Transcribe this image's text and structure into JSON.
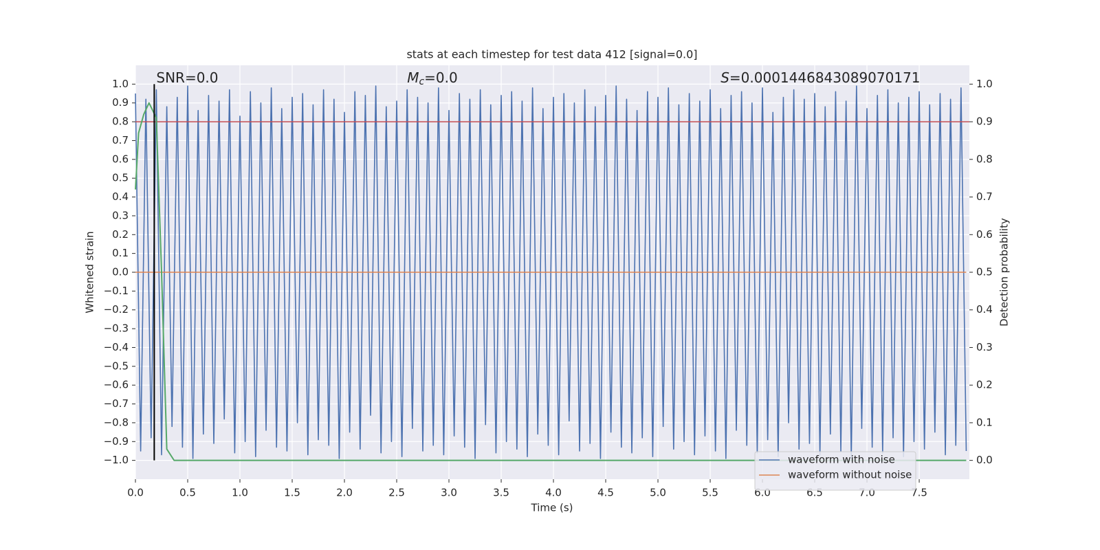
{
  "chart_data": {
    "type": "line",
    "title": "stats at each timestep for test data 412 [signal=0.0]",
    "xlabel": "Time (s)",
    "ylabel": "Whitened strain",
    "y2label": "Detection probability",
    "annotations": [
      {
        "x": 0.2,
        "text": "SNR=0.0"
      },
      {
        "x": 2.6,
        "symbol": "M",
        "sub": "c",
        "text": "=0.0"
      },
      {
        "x": 5.6,
        "symbol": "S",
        "text": "=0.0001446843089070171"
      }
    ],
    "series": [
      {
        "name": "waveform with noise",
        "color": "#4c72b0",
        "x": [
          0,
          0.05,
          0.1,
          0.15,
          0.2,
          0.25,
          0.3,
          0.35,
          0.4,
          0.45,
          0.5,
          0.55,
          0.6,
          0.65,
          0.7,
          0.75,
          0.8,
          0.85,
          0.9,
          0.95,
          1,
          1.05,
          1.1,
          1.15,
          1.2,
          1.25,
          1.3,
          1.35,
          1.4,
          1.45,
          1.5,
          1.55,
          1.6,
          1.65,
          1.7,
          1.75,
          1.8,
          1.85,
          1.9,
          1.95,
          2,
          2.05,
          2.1,
          2.15,
          2.2,
          2.25,
          2.3,
          2.35,
          2.4,
          2.45,
          2.5,
          2.55,
          2.6,
          2.65,
          2.7,
          2.75,
          2.8,
          2.85,
          2.9,
          2.95,
          3,
          3.05,
          3.1,
          3.15,
          3.2,
          3.25,
          3.3,
          3.35,
          3.4,
          3.45,
          3.5,
          3.55,
          3.6,
          3.65,
          3.7,
          3.75,
          3.8,
          3.85,
          3.9,
          3.95,
          4,
          4.05,
          4.1,
          4.15,
          4.2,
          4.25,
          4.3,
          4.35,
          4.4,
          4.45,
          4.5,
          4.55,
          4.6,
          4.65,
          4.7,
          4.75,
          4.8,
          4.85,
          4.9,
          4.95,
          5,
          5.05,
          5.1,
          5.15,
          5.2,
          5.25,
          5.3,
          5.35,
          5.4,
          5.45,
          5.5,
          5.55,
          5.6,
          5.65,
          5.7,
          5.75,
          5.8,
          5.85,
          5.9,
          5.95,
          6,
          6.05,
          6.1,
          6.15,
          6.2,
          6.25,
          6.3,
          6.35,
          6.4,
          6.45,
          6.5,
          6.55,
          6.6,
          6.65,
          6.7,
          6.75,
          6.8,
          6.85,
          6.9,
          6.95,
          7,
          7.05,
          7.1,
          7.15,
          7.2,
          7.25,
          7.3,
          7.35,
          7.4,
          7.45,
          7.5,
          7.55,
          7.6,
          7.65,
          7.7,
          7.75,
          7.8,
          7.85,
          7.9,
          7.95
        ],
        "values": [
          0.95,
          -0.95,
          0.92,
          -0.88,
          0.97,
          -0.97,
          0.88,
          -0.82,
          0.93,
          -0.93,
          0.99,
          -0.99,
          0.86,
          -0.86,
          0.94,
          -0.91,
          0.91,
          -0.78,
          0.97,
          -0.96,
          0.83,
          -0.9,
          0.96,
          -0.98,
          0.9,
          -0.84,
          0.98,
          -0.93,
          0.87,
          -0.95,
          0.93,
          -0.8,
          0.95,
          -0.97,
          0.89,
          -0.89,
          0.97,
          -0.92,
          0.92,
          -0.99,
          0.85,
          -0.85,
          0.96,
          -0.94,
          0.94,
          -0.76,
          0.99,
          -0.96,
          0.88,
          -0.9,
          0.91,
          -0.98,
          0.97,
          -0.83,
          0.93,
          -0.95,
          0.9,
          -0.92,
          0.98,
          -0.97,
          0.86,
          -0.87,
          0.95,
          -0.93,
          0.92,
          -0.99,
          0.97,
          -0.81,
          0.89,
          -0.96,
          0.94,
          -0.9,
          0.96,
          -0.94,
          0.91,
          -0.98,
          0.98,
          -0.86,
          0.87,
          -0.92,
          0.93,
          -0.97,
          0.95,
          -0.79,
          0.9,
          -0.95,
          0.97,
          -0.91,
          0.88,
          -0.99,
          0.94,
          -0.85,
          0.99,
          -0.93,
          0.92,
          -0.96,
          0.86,
          -0.88,
          0.96,
          -0.98,
          0.93,
          -0.82,
          0.98,
          -0.94,
          0.89,
          -0.9,
          0.95,
          -0.97,
          0.91,
          -0.87,
          0.97,
          -0.95,
          0.87,
          -0.99,
          0.94,
          -0.84,
          0.96,
          -0.92,
          0.9,
          -0.96,
          0.98,
          -0.89,
          0.85,
          -0.98,
          0.93,
          -0.8,
          0.97,
          -0.94,
          0.92,
          -0.91,
          0.95,
          -0.97,
          0.88,
          -0.86,
          0.96,
          -0.95,
          0.91,
          -0.99,
          0.99,
          -0.83,
          0.87,
          -0.93,
          0.94,
          -0.96,
          0.97,
          -0.88,
          0.9,
          -0.98,
          0.93,
          -0.9,
          0.96,
          -0.94,
          0.89,
          -0.85,
          0.95,
          -0.97,
          0.92,
          -0.92,
          0.98,
          -0.95
        ]
      },
      {
        "name": "waveform without noise",
        "color": "#dd8452",
        "x": [
          0,
          7.95
        ],
        "values": [
          0,
          0
        ]
      }
    ],
    "probability": {
      "axis": "y2",
      "color": "#55a868",
      "x": [
        0,
        0.03,
        0.08,
        0.13,
        0.2,
        0.25,
        0.3,
        0.37,
        7.95
      ],
      "values": [
        0.72,
        0.87,
        0.92,
        0.95,
        0.91,
        0.5,
        0.03,
        0,
        0
      ]
    },
    "hlines": [
      {
        "axis": "y2",
        "value": 0.9,
        "color": "#c44e52"
      }
    ],
    "vlines": [
      {
        "x": 0.18,
        "ymin": -1,
        "ymax": 1,
        "color": "#000000"
      }
    ],
    "xlim": [
      0,
      7.98
    ],
    "ylim": [
      -1.1,
      1.1
    ],
    "y2lim": [
      -0.05,
      1.05
    ],
    "xticks": [
      {
        "value": 0,
        "label": "0.0"
      },
      0.5,
      {
        "value": 1,
        "label": "1.0"
      },
      1.5,
      {
        "value": 2,
        "label": "2.0"
      },
      2.5,
      {
        "value": 3,
        "label": "3.0"
      },
      3.5,
      {
        "value": 4,
        "label": "4.0"
      },
      4.5,
      {
        "value": 5,
        "label": "5.0"
      },
      5.5,
      {
        "value": 6,
        "label": "6.0"
      },
      6.5,
      {
        "value": 7,
        "label": "7.0"
      },
      7.5
    ],
    "yticks": [
      {
        "value": -1,
        "label": "−1.0"
      },
      {
        "value": -0.9,
        "label": "−0.9"
      },
      {
        "value": -0.8,
        "label": "−0.8"
      },
      {
        "value": -0.7,
        "label": "−0.7"
      },
      {
        "value": -0.6,
        "label": "−0.6"
      },
      {
        "value": -0.5,
        "label": "−0.5"
      },
      {
        "value": -0.4,
        "label": "−0.4"
      },
      {
        "value": -0.3,
        "label": "−0.3"
      },
      {
        "value": -0.2,
        "label": "−0.2"
      },
      {
        "value": -0.1,
        "label": "−0.1"
      },
      {
        "value": 0,
        "label": "0.0"
      },
      0.1,
      0.2,
      0.3,
      0.4,
      0.5,
      0.6,
      0.7,
      0.8,
      0.9,
      {
        "value": 1,
        "label": "1.0"
      }
    ],
    "y2ticks": [
      {
        "value": 0,
        "label": "0.0"
      },
      0.1,
      0.2,
      0.3,
      0.4,
      0.5,
      0.6,
      0.7,
      0.8,
      0.9,
      {
        "value": 1,
        "label": "1.0"
      }
    ],
    "grid": true,
    "legend": "lower right",
    "background": "#eaeaf2"
  }
}
